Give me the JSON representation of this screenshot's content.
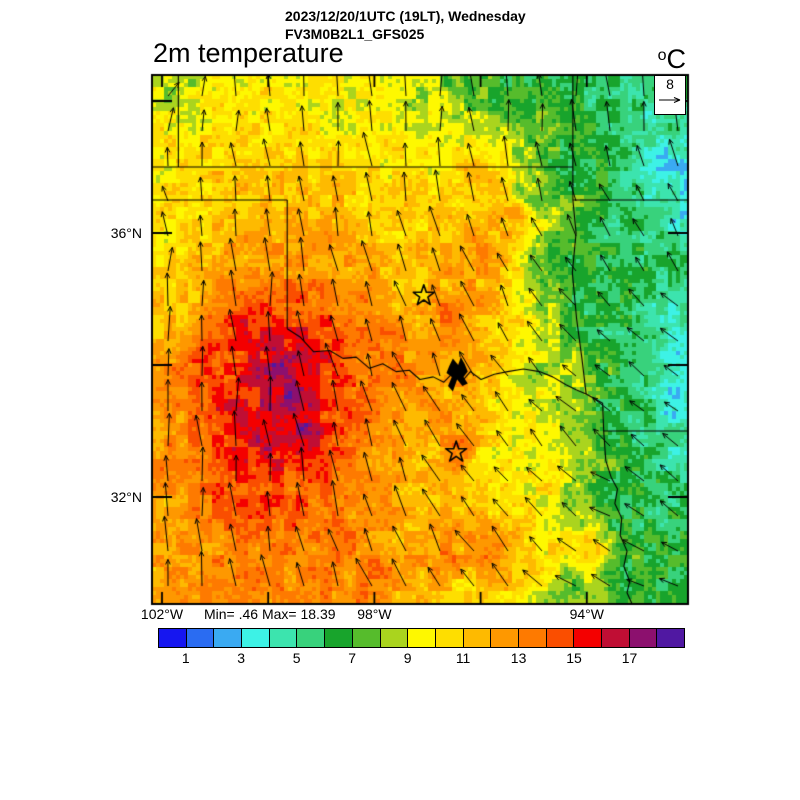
{
  "header": {
    "datetime_line": "2023/12/20/1UTC (19LT), Wednesday",
    "model_line": "FV3M0B2L1_GFS025"
  },
  "map": {
    "title": "2m temperature",
    "units_sup": "o",
    "units_base": "C",
    "min_max_text": "Min= .46 Max= 18.39",
    "wind_reference_label": "8"
  },
  "axes": {
    "lat_ticks": [
      {
        "lat": 38,
        "label": ""
      },
      {
        "lat": 36,
        "label": "36°N"
      },
      {
        "lat": 34,
        "label": ""
      },
      {
        "lat": 32,
        "label": "32°N"
      }
    ],
    "lon_ticks": [
      {
        "lon_w": 102,
        "label": "102°W"
      },
      {
        "lon_w": 100,
        "label": ""
      },
      {
        "lon_w": 98,
        "label": "98°W"
      },
      {
        "lon_w": 96,
        "label": ""
      },
      {
        "lon_w": 94,
        "label": "94°W"
      }
    ]
  },
  "colorbar": {
    "colors": [
      "#1616f0",
      "#2a6cf2",
      "#3aaaf2",
      "#3df2e6",
      "#3ce4ae",
      "#38d27c",
      "#18a42c",
      "#56bc2c",
      "#aad41e",
      "#fef800",
      "#fede00",
      "#feba00",
      "#fe9800",
      "#fe7a00",
      "#fa4e00",
      "#f40000",
      "#c00e34",
      "#8c106e",
      "#5018a2"
    ],
    "levels": [
      0,
      1,
      2,
      3,
      4,
      5,
      6,
      7,
      8,
      9,
      10,
      11,
      12,
      13,
      14,
      15,
      16,
      17,
      18,
      19
    ],
    "ticks": [
      1,
      3,
      5,
      7,
      9,
      11,
      13,
      15,
      17
    ]
  },
  "chart_data": {
    "type": "heatmap",
    "title": "2m temperature",
    "datetime": "2023/12/20/1UTC (19LT), Wednesday",
    "model": "FV3M0B2L1_GFS025",
    "units": "°C",
    "stat_min": 0.46,
    "stat_max": 18.39,
    "wind_reference_ms": 8,
    "lon_w_range": [
      102.19,
      92.05
    ],
    "lat_range": [
      30.38,
      38.41
    ],
    "colormap_note": "temperature shaded every 1 C from 0 to 19",
    "temperature_points": [
      [
        99.55,
        33.45,
        17.8
      ],
      [
        99.8,
        33.95,
        17.2
      ],
      [
        99.3,
        33.0,
        17.0
      ],
      [
        99.9,
        32.85,
        16.6
      ],
      [
        99.35,
        34.15,
        16.3
      ],
      [
        100.6,
        33.3,
        15.6
      ],
      [
        100.3,
        34.55,
        15.2
      ],
      [
        98.85,
        33.2,
        14.9
      ],
      [
        99.05,
        34.4,
        15.3
      ],
      [
        100.4,
        32.2,
        14.6
      ],
      [
        99.7,
        31.85,
        14.3
      ],
      [
        98.6,
        32.45,
        13.8
      ],
      [
        100.95,
        33.9,
        14.8
      ],
      [
        101.75,
        33.4,
        12.8
      ],
      [
        101.85,
        35.1,
        10.8
      ],
      [
        102.15,
        34.6,
        11.2
      ],
      [
        102.1,
        36.0,
        10.0
      ],
      [
        102.05,
        36.9,
        9.8
      ],
      [
        102.1,
        33.2,
        12.2
      ],
      [
        102.0,
        31.7,
        12.0
      ],
      [
        101.95,
        30.7,
        12.2
      ],
      [
        101.0,
        30.6,
        12.8
      ],
      [
        101.3,
        36.8,
        10.8
      ],
      [
        100.3,
        36.9,
        11.3
      ],
      [
        99.2,
        36.7,
        11.0
      ],
      [
        101.0,
        37.9,
        10.0
      ],
      [
        99.6,
        37.8,
        9.7
      ],
      [
        98.55,
        37.9,
        9.5
      ],
      [
        101.75,
        38.3,
        7.8
      ],
      [
        102.1,
        38.35,
        9.0
      ],
      [
        97.5,
        37.4,
        9.8
      ],
      [
        96.6,
        37.7,
        8.8
      ],
      [
        97.2,
        38.35,
        8.6
      ],
      [
        96.4,
        38.3,
        7.2
      ],
      [
        95.4,
        38.1,
        6.6
      ],
      [
        94.9,
        38.35,
        6.6
      ],
      [
        93.8,
        38.2,
        5.9
      ],
      [
        92.6,
        38.3,
        5.4
      ],
      [
        98.7,
        35.9,
        12.3
      ],
      [
        98.25,
        34.75,
        13.4
      ],
      [
        96.55,
        34.8,
        13.6
      ],
      [
        95.95,
        35.6,
        13.3
      ],
      [
        95.35,
        36.3,
        12.8
      ],
      [
        96.1,
        36.85,
        11.5
      ],
      [
        97.25,
        35.1,
        10.8
      ],
      [
        97.8,
        36.3,
        10.5
      ],
      [
        96.9,
        34.3,
        12.5
      ],
      [
        97.6,
        34.05,
        13.0
      ],
      [
        98.0,
        34.2,
        13.8
      ],
      [
        95.05,
        36.5,
        7.6
      ],
      [
        94.35,
        37.05,
        6.4
      ],
      [
        94.6,
        35.6,
        6.9
      ],
      [
        93.95,
        35.0,
        6.0
      ],
      [
        93.3,
        36.1,
        5.4
      ],
      [
        92.85,
        37.55,
        4.6
      ],
      [
        92.5,
        37.0,
        2.9
      ],
      [
        92.2,
        36.3,
        3.9
      ],
      [
        93.5,
        37.3,
        5.8
      ],
      [
        93.6,
        34.6,
        5.8
      ],
      [
        92.5,
        34.85,
        4.6
      ],
      [
        92.3,
        33.45,
        2.9
      ],
      [
        93.0,
        33.05,
        5.2
      ],
      [
        93.45,
        33.35,
        6.2
      ],
      [
        92.2,
        34.3,
        3.6
      ],
      [
        94.9,
        33.85,
        8.6
      ],
      [
        95.45,
        33.4,
        9.4
      ],
      [
        95.9,
        32.6,
        9.8
      ],
      [
        95.15,
        32.15,
        9.2
      ],
      [
        94.7,
        32.3,
        10.6
      ],
      [
        94.15,
        32.0,
        8.0
      ],
      [
        93.6,
        32.1,
        6.3
      ],
      [
        96.55,
        33.1,
        12.8
      ],
      [
        96.9,
        32.5,
        11.5
      ],
      [
        97.55,
        32.7,
        12.2
      ],
      [
        96.15,
        33.5,
        10.6
      ],
      [
        96.3,
        32.1,
        11.2
      ],
      [
        96.45,
        32.7,
        13.8
      ],
      [
        98.05,
        30.8,
        13.6
      ],
      [
        98.9,
        31.6,
        13.4
      ],
      [
        97.55,
        31.35,
        12.0
      ],
      [
        97.2,
        30.6,
        11.6
      ],
      [
        96.3,
        30.55,
        10.8
      ],
      [
        95.75,
        31.25,
        13.2
      ],
      [
        96.7,
        31.05,
        13.0
      ],
      [
        95.2,
        31.0,
        11.0
      ],
      [
        94.4,
        30.6,
        7.6
      ],
      [
        93.4,
        30.8,
        6.4
      ],
      [
        92.4,
        30.6,
        6.0
      ],
      [
        93.15,
        31.45,
        6.2
      ],
      [
        92.6,
        31.9,
        5.6
      ],
      [
        92.35,
        32.6,
        4.4
      ],
      [
        94.0,
        31.2,
        11.5
      ],
      [
        96.45,
        33.9,
        12.5
      ]
    ],
    "wind_points": [
      [
        101.7,
        37.6,
        15,
        0.5
      ],
      [
        101.85,
        38.25,
        70,
        0.25
      ],
      [
        100.6,
        37.9,
        0,
        0.75
      ],
      [
        98.6,
        37.9,
        -3,
        0.95
      ],
      [
        96.6,
        37.9,
        3,
        0.9
      ],
      [
        94.6,
        37.6,
        3,
        0.85
      ],
      [
        92.7,
        37.6,
        -2,
        0.75
      ],
      [
        92.3,
        36.1,
        -25,
        0.45
      ],
      [
        102.0,
        36.3,
        -40,
        0.35
      ],
      [
        100.9,
        36.3,
        -5,
        0.6
      ],
      [
        99.7,
        36.5,
        -8,
        0.75
      ],
      [
        98.2,
        36.5,
        -6,
        0.9
      ],
      [
        96.8,
        36.4,
        -12,
        0.75
      ],
      [
        95.2,
        36.5,
        -15,
        0.6
      ],
      [
        93.8,
        36.3,
        -30,
        0.45
      ],
      [
        101.9,
        35.3,
        4,
        0.8
      ],
      [
        100.5,
        35.0,
        0,
        0.9
      ],
      [
        99.0,
        35.4,
        -10,
        0.85
      ],
      [
        97.4,
        35.2,
        -16,
        0.8
      ],
      [
        95.9,
        35.4,
        -24,
        0.6
      ],
      [
        94.4,
        35.2,
        -42,
        0.5
      ],
      [
        93.0,
        35.0,
        -48,
        0.42
      ],
      [
        101.9,
        33.8,
        2,
        0.9
      ],
      [
        100.4,
        33.6,
        0,
        0.95
      ],
      [
        98.9,
        33.6,
        -14,
        0.88
      ],
      [
        97.4,
        33.4,
        -24,
        0.8
      ],
      [
        96.0,
        33.3,
        -36,
        0.62
      ],
      [
        94.6,
        33.4,
        -55,
        0.48
      ],
      [
        93.2,
        33.4,
        -60,
        0.45
      ],
      [
        92.3,
        33.6,
        -66,
        0.45
      ],
      [
        101.9,
        32.2,
        1,
        0.9
      ],
      [
        100.4,
        32.0,
        -3,
        0.95
      ],
      [
        98.9,
        32.0,
        -12,
        0.9
      ],
      [
        97.4,
        31.9,
        -22,
        0.85
      ],
      [
        95.9,
        32.0,
        -34,
        0.68
      ],
      [
        94.5,
        32.1,
        -50,
        0.55
      ],
      [
        93.1,
        32.2,
        -62,
        0.5
      ],
      [
        101.9,
        30.8,
        0,
        0.88
      ],
      [
        100.4,
        30.7,
        -6,
        0.92
      ],
      [
        98.9,
        30.8,
        -16,
        0.88
      ],
      [
        97.4,
        30.7,
        -26,
        0.82
      ],
      [
        95.9,
        30.9,
        -38,
        0.68
      ],
      [
        94.4,
        30.7,
        -58,
        0.58
      ],
      [
        93.0,
        30.7,
        -72,
        0.52
      ],
      [
        92.3,
        30.5,
        -76,
        0.5
      ],
      [
        96.5,
        34.3,
        -25,
        0.75
      ],
      [
        98.0,
        36.5,
        -5,
        0.9
      ],
      [
        99.8,
        36.6,
        -5,
        0.8
      ],
      [
        92.5,
        34.5,
        -55,
        0.4
      ],
      [
        93.5,
        32.0,
        -65,
        0.5
      ],
      [
        95.3,
        32.3,
        -40,
        0.6
      ]
    ],
    "stars": [
      [
        97.07,
        35.05
      ],
      [
        96.46,
        32.68
      ]
    ],
    "lake": [
      [
        96.95,
        33.98
      ],
      [
        96.88,
        34.1
      ],
      [
        96.78,
        34.0
      ],
      [
        96.73,
        34.12
      ],
      [
        96.66,
        34.02
      ],
      [
        96.6,
        33.9
      ],
      [
        96.68,
        33.82
      ],
      [
        96.6,
        33.72
      ],
      [
        96.7,
        33.68
      ],
      [
        96.8,
        33.78
      ],
      [
        96.88,
        33.6
      ],
      [
        96.97,
        33.68
      ],
      [
        96.9,
        33.82
      ],
      [
        97.0,
        33.88
      ]
    ],
    "borders": {
      "co_ks": [
        [
          102.05,
          38.42
        ],
        [
          102.05,
          37.0
        ]
      ],
      "ks_ok": [
        [
          102.56,
          37.0
        ],
        [
          94.62,
          37.0
        ]
      ],
      "ks_mo": [
        [
          94.62,
          38.42
        ],
        [
          94.62,
          37.0
        ]
      ],
      "mo_w": [
        [
          94.62,
          37.0
        ],
        [
          94.62,
          36.5
        ]
      ],
      "mo_ar": [
        [
          94.62,
          36.5
        ],
        [
          92.3,
          36.5
        ]
      ],
      "ok_tx_n": [
        [
          102.56,
          36.5
        ],
        [
          100.0,
          36.5
        ]
      ],
      "tx_ok_100w": [
        [
          100.0,
          36.5
        ],
        [
          100.0,
          34.55
        ]
      ],
      "red_river": [
        [
          100.0,
          34.55
        ],
        [
          99.75,
          34.42
        ],
        [
          99.5,
          34.2
        ],
        [
          99.2,
          34.22
        ],
        [
          98.95,
          34.1
        ],
        [
          98.7,
          34.12
        ],
        [
          98.45,
          33.95
        ],
        [
          98.2,
          34.02
        ],
        [
          97.95,
          33.9
        ],
        [
          97.7,
          33.92
        ],
        [
          97.5,
          33.78
        ],
        [
          97.25,
          33.82
        ],
        [
          97.05,
          33.74
        ],
        [
          96.88,
          33.88
        ],
        [
          96.7,
          33.76
        ],
        [
          96.55,
          33.9
        ],
        [
          96.35,
          33.78
        ],
        [
          96.1,
          33.86
        ],
        [
          95.85,
          33.9
        ],
        [
          95.55,
          33.94
        ],
        [
          95.25,
          33.9
        ],
        [
          95.0,
          33.82
        ],
        [
          94.75,
          33.7
        ],
        [
          94.55,
          33.62
        ],
        [
          94.37,
          33.56
        ]
      ],
      "ok_ar": [
        [
          94.62,
          36.5
        ],
        [
          94.56,
          36.0
        ],
        [
          94.63,
          35.4
        ],
        [
          94.55,
          34.7
        ],
        [
          94.45,
          34.1
        ],
        [
          94.37,
          33.56
        ]
      ],
      "tx_ar": [
        [
          94.37,
          33.56
        ],
        [
          94.06,
          33.42
        ],
        [
          94.04,
          33.0
        ]
      ],
      "ar_la": [
        [
          94.04,
          33.0
        ],
        [
          92.3,
          33.0
        ]
      ],
      "tx_la": [
        [
          94.04,
          33.0
        ],
        [
          94.0,
          32.55
        ],
        [
          93.9,
          32.3
        ],
        [
          93.78,
          32.12
        ],
        [
          93.83,
          31.9
        ],
        [
          93.7,
          31.68
        ],
        [
          93.73,
          31.42
        ],
        [
          93.6,
          31.18
        ],
        [
          93.66,
          30.95
        ],
        [
          93.55,
          30.72
        ],
        [
          93.6,
          30.55
        ],
        [
          93.5,
          30.37
        ]
      ]
    }
  }
}
